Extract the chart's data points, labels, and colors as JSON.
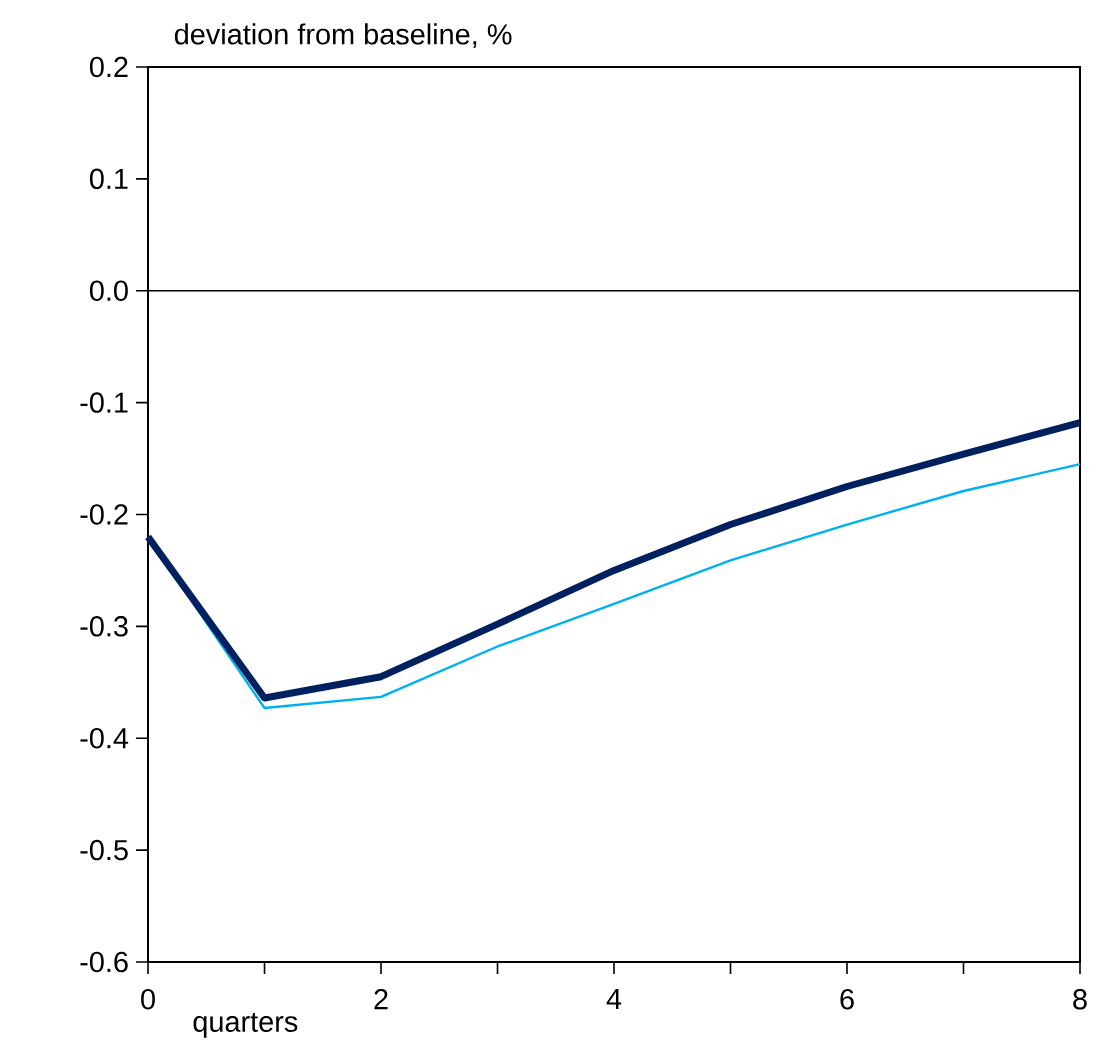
{
  "chart_data": {
    "type": "line",
    "title": "deviation from baseline, %",
    "xlabel": "quarters",
    "x": [
      0,
      1,
      2,
      3,
      4,
      5,
      6,
      7,
      8
    ],
    "series": [
      {
        "color": "#002060",
        "values": [
          -0.22,
          -0.364,
          -0.345,
          -0.298,
          -0.25,
          -0.209,
          -0.175,
          -0.146,
          -0.118
        ]
      },
      {
        "color": "#00b0f0",
        "values": [
          -0.22,
          -0.373,
          -0.363,
          -0.318,
          -0.28,
          -0.241,
          -0.209,
          -0.179,
          -0.155
        ]
      }
    ],
    "xlim": [
      0,
      8
    ],
    "ylim": [
      -0.6,
      0.2
    ],
    "xticks": [
      0,
      {
        "value": 1,
        "label": null
      },
      2,
      {
        "value": 3,
        "label": null
      },
      4,
      {
        "value": 5,
        "label": null
      },
      6,
      {
        "value": 7,
        "label": null
      },
      8
    ],
    "yticks": [
      -0.6,
      -0.5,
      -0.4,
      -0.3,
      -0.2,
      -0.1,
      {
        "value": 0,
        "label": "0.0"
      },
      0.1,
      0.2
    ],
    "ref_lines": [
      {
        "axis": "y",
        "value": 0,
        "color": "#000000"
      }
    ]
  }
}
